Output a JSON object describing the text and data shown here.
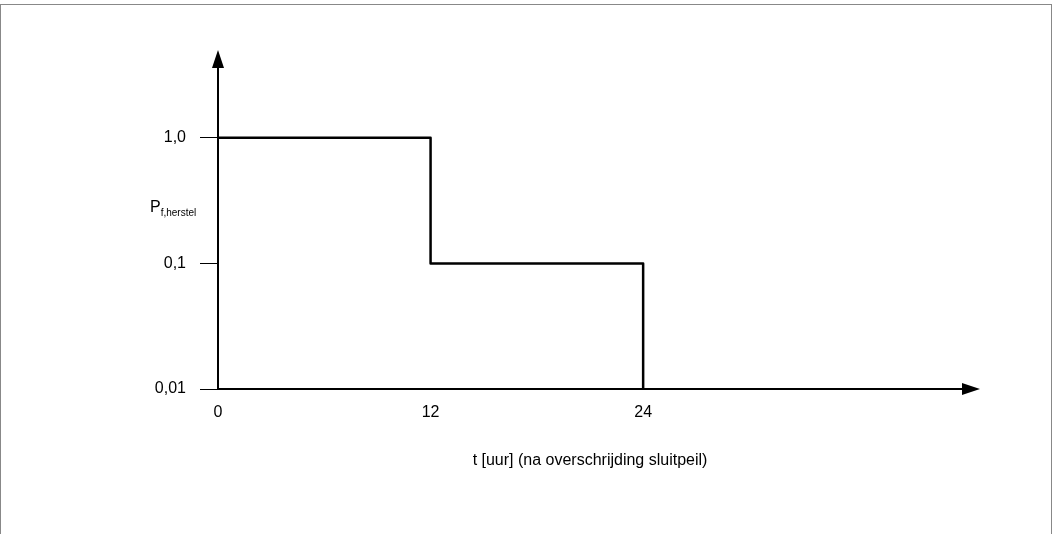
{
  "chart_data": {
    "type": "step",
    "xlabel": "t [uur] (na overschrijding sluitpeil)",
    "ylabel": "P$_{f,herstel}$",
    "log": "y",
    "grid": false,
    "legend": false,
    "marker": "none",
    "line_style": "solid",
    "xlim": [
      0,
      42
    ],
    "xticks": [
      0,
      12,
      24
    ],
    "ylim": [
      0.01,
      3.6
    ],
    "yticks": [
      {
        "value": 0.01,
        "label": "0,01"
      },
      {
        "value": 0.1,
        "label": "0,1"
      },
      {
        "value": 1,
        "label": "1,0"
      }
    ],
    "series": [
      {
        "color": "#000000",
        "x": [
          0,
          12,
          24
        ],
        "values": [
          1,
          0.1,
          0.01
        ]
      }
    ]
  }
}
